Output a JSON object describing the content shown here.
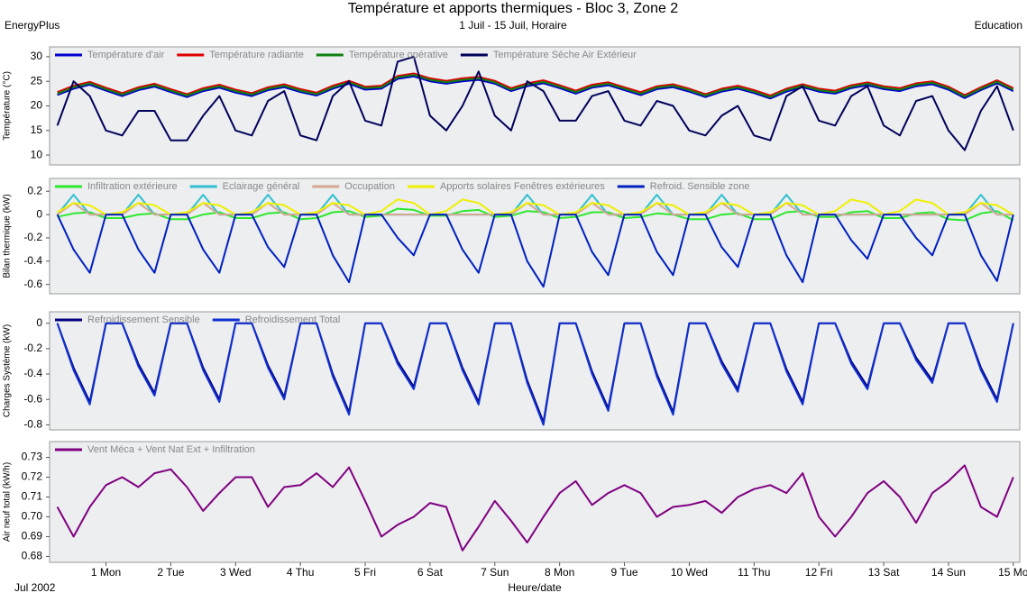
{
  "header": {
    "title": "Température et apports thermiques - Bloc 3, Zone 2",
    "subtitle": "1 Juil - 15 Juil, Horaire",
    "left_label": "EnergyPlus",
    "right_label": "Education"
  },
  "chart_data": [
    {
      "type": "line",
      "y_label": "Température (°C)",
      "xlim": [
        0.13,
        15.1
      ],
      "ylim": [
        8,
        32
      ],
      "yticks": [
        10,
        15,
        20,
        25,
        30
      ],
      "x": [
        0.25,
        0.5,
        0.75,
        1,
        1.25,
        1.5,
        1.75,
        2,
        2.25,
        2.5,
        2.75,
        3,
        3.25,
        3.5,
        3.75,
        4,
        4.25,
        4.5,
        4.75,
        5,
        5.25,
        5.5,
        5.75,
        6,
        6.25,
        6.5,
        6.75,
        7,
        7.25,
        7.5,
        7.75,
        8,
        8.25,
        8.5,
        8.75,
        9,
        9.25,
        9.5,
        9.75,
        10,
        10.25,
        10.5,
        10.75,
        11,
        11.25,
        11.5,
        11.75,
        12,
        12.25,
        12.5,
        12.75,
        13,
        13.25,
        13.5,
        13.75,
        14,
        14.25,
        14.5,
        14.75,
        15
      ],
      "series": [
        {
          "name": "Température d'air",
          "color": "#0000cd",
          "values": [
            22.2,
            23.5,
            24.3,
            23.1,
            22.0,
            23.2,
            23.9,
            22.8,
            21.8,
            23.0,
            23.7,
            22.7,
            22.0,
            23.2,
            23.8,
            22.8,
            22.1,
            23.5,
            24.5,
            23.3,
            23.5,
            25.5,
            26.0,
            25.0,
            24.5,
            25.0,
            25.3,
            24.5,
            23.0,
            24.0,
            24.6,
            23.6,
            22.5,
            23.7,
            24.2,
            23.2,
            22.2,
            23.4,
            23.8,
            22.9,
            21.8,
            22.9,
            23.5,
            22.6,
            21.5,
            22.9,
            23.8,
            22.9,
            22.5,
            23.6,
            24.2,
            23.4,
            23.0,
            24.0,
            24.4,
            23.3,
            21.6,
            23.2,
            24.6,
            23.0
          ]
        },
        {
          "name": "Température radiante",
          "color": "#e00000",
          "values": [
            22.8,
            24.1,
            24.9,
            23.7,
            22.6,
            23.8,
            24.5,
            23.4,
            22.4,
            23.6,
            24.3,
            23.3,
            22.6,
            23.8,
            24.4,
            23.4,
            22.7,
            24.1,
            25.1,
            23.9,
            24.1,
            26.1,
            26.6,
            25.6,
            25.1,
            25.6,
            25.9,
            25.1,
            23.6,
            24.6,
            25.2,
            24.2,
            23.1,
            24.3,
            24.8,
            23.8,
            22.8,
            24.0,
            24.4,
            23.5,
            22.4,
            23.5,
            24.1,
            23.2,
            22.1,
            23.5,
            24.4,
            23.5,
            23.1,
            24.2,
            24.8,
            24.0,
            23.6,
            24.6,
            25.0,
            23.9,
            22.2,
            23.8,
            25.2,
            23.6
          ]
        },
        {
          "name": "Température opérative",
          "color": "#108010",
          "values": [
            22.5,
            23.8,
            24.6,
            23.4,
            22.3,
            23.5,
            24.2,
            23.1,
            22.1,
            23.3,
            24.0,
            23.0,
            22.3,
            23.5,
            24.1,
            23.1,
            22.4,
            23.8,
            24.8,
            23.6,
            23.8,
            25.8,
            26.3,
            25.3,
            24.8,
            25.3,
            25.6,
            24.8,
            23.3,
            24.3,
            24.9,
            23.9,
            22.8,
            24.0,
            24.5,
            23.5,
            22.5,
            23.7,
            24.1,
            23.2,
            22.1,
            23.2,
            23.8,
            22.9,
            21.8,
            23.2,
            24.1,
            23.2,
            22.8,
            23.9,
            24.5,
            23.7,
            23.3,
            24.3,
            24.7,
            23.6,
            21.9,
            23.5,
            24.9,
            23.3
          ]
        },
        {
          "name": "Température Sèche Air Extérieur",
          "color": "#00005a",
          "values": [
            16,
            25,
            22,
            15,
            14,
            19,
            19,
            13,
            13,
            18,
            22,
            15,
            14,
            21,
            23,
            14,
            13,
            22,
            25,
            17,
            16,
            29,
            30,
            18,
            15,
            20,
            27,
            18,
            15,
            25,
            23,
            17,
            17,
            22,
            23,
            17,
            16,
            21,
            20,
            15,
            14,
            18,
            20,
            14,
            13,
            22,
            24,
            17,
            16,
            22,
            24,
            16,
            14,
            21,
            22,
            15,
            11,
            19,
            24,
            15
          ]
        }
      ]
    },
    {
      "type": "line",
      "y_label": "Bilan thermique (kW)",
      "xlim": [
        0.13,
        15.1
      ],
      "ylim": [
        -0.68,
        0.31
      ],
      "yticks": [
        -0.6,
        -0.4,
        -0.2,
        0,
        0.2
      ],
      "x": [
        0.25,
        0.5,
        0.75,
        1,
        1.25,
        1.5,
        1.75,
        2,
        2.25,
        2.5,
        2.75,
        3,
        3.25,
        3.5,
        3.75,
        4,
        4.25,
        4.5,
        4.75,
        5,
        5.25,
        5.5,
        5.75,
        6,
        6.25,
        6.5,
        6.75,
        7,
        7.25,
        7.5,
        7.75,
        8,
        8.25,
        8.5,
        8.75,
        9,
        9.25,
        9.5,
        9.75,
        10,
        10.25,
        10.5,
        10.75,
        11,
        11.25,
        11.5,
        11.75,
        12,
        12.25,
        12.5,
        12.75,
        13,
        13.25,
        13.5,
        13.75,
        14,
        14.25,
        14.5,
        14.75,
        15
      ],
      "series": [
        {
          "name": "Infiltration extérieure",
          "color": "#2ee82e",
          "values": [
            -0.02,
            0.01,
            0.02,
            -0.03,
            -0.03,
            0,
            0.01,
            -0.04,
            -0.04,
            0,
            0.02,
            -0.03,
            -0.03,
            0.01,
            0.02,
            -0.04,
            -0.03,
            0.02,
            0.03,
            -0.02,
            -0.01,
            0.05,
            0.04,
            -0.01,
            -0.01,
            0.03,
            0.04,
            -0.02,
            -0.01,
            0.03,
            0.02,
            -0.03,
            -0.02,
            0.02,
            0.02,
            -0.03,
            -0.02,
            0.01,
            0,
            -0.04,
            -0.04,
            0,
            0.01,
            -0.04,
            -0.04,
            0.02,
            0.03,
            -0.02,
            -0.02,
            0.02,
            0.03,
            -0.03,
            -0.03,
            0.01,
            0.02,
            -0.04,
            -0.05,
            0.01,
            0.03,
            -0.05
          ]
        },
        {
          "name": "Eclairage général",
          "color": "#30c0d0",
          "values": [
            0,
            0.17,
            0,
            0,
            0,
            0.17,
            0,
            0,
            0,
            0.17,
            0,
            0,
            0,
            0.17,
            0,
            0,
            0,
            0.17,
            0,
            0,
            0,
            0,
            0,
            0,
            0,
            0,
            0,
            0,
            0,
            0.17,
            0,
            0,
            0,
            0.17,
            0,
            0,
            0,
            0.17,
            0,
            0,
            0,
            0.17,
            0,
            0,
            0,
            0.17,
            0,
            0,
            0,
            0,
            0,
            0,
            0,
            0,
            0,
            0,
            0,
            0.17,
            0,
            0
          ]
        },
        {
          "name": "Occupation",
          "color": "#d4a890",
          "values": [
            0,
            0.1,
            0,
            0,
            0,
            0.1,
            0,
            0,
            0,
            0.1,
            0,
            0,
            0,
            0.1,
            0,
            0,
            0,
            0.1,
            0,
            0,
            0,
            0,
            0,
            0,
            0,
            0,
            0,
            0,
            0,
            0.1,
            0,
            0,
            0,
            0.1,
            0,
            0,
            0,
            0.1,
            0,
            0,
            0,
            0.1,
            0,
            0,
            0,
            0.1,
            0,
            0,
            0,
            0,
            0,
            0,
            0,
            0,
            0,
            0,
            0,
            0.1,
            0,
            0
          ]
        },
        {
          "name": "Apports solaires Fenêtres extérieures",
          "color": "#f0f000",
          "values": [
            0.02,
            0.1,
            0.08,
            0,
            0.02,
            0.1,
            0.08,
            0,
            0.02,
            0.1,
            0.08,
            0,
            0.02,
            0.1,
            0.08,
            0,
            0.02,
            0.1,
            0.08,
            0,
            0.03,
            0.13,
            0.1,
            0,
            0.03,
            0.13,
            0.1,
            0,
            0.02,
            0.1,
            0.08,
            0,
            0.02,
            0.1,
            0.08,
            0,
            0.02,
            0.1,
            0.08,
            0,
            0.02,
            0.1,
            0.08,
            0,
            0.02,
            0.1,
            0.08,
            0,
            0.03,
            0.13,
            0.1,
            0,
            0.03,
            0.13,
            0.1,
            0,
            0.02,
            0.1,
            0.08,
            0
          ]
        },
        {
          "name": "Refroid. Sensible zone",
          "color": "#0020c0",
          "values": [
            0,
            -0.3,
            -0.5,
            0,
            0,
            -0.3,
            -0.5,
            0,
            0,
            -0.3,
            -0.5,
            0,
            0,
            -0.28,
            -0.45,
            0,
            0,
            -0.35,
            -0.58,
            0,
            0,
            -0.2,
            -0.35,
            0,
            0,
            -0.3,
            -0.5,
            0,
            0,
            -0.4,
            -0.62,
            0,
            0,
            -0.32,
            -0.52,
            0,
            0,
            -0.32,
            -0.52,
            0,
            0,
            -0.28,
            -0.45,
            0,
            0,
            -0.35,
            -0.58,
            0,
            0,
            -0.22,
            -0.38,
            0,
            0,
            -0.2,
            -0.35,
            0,
            0,
            -0.35,
            -0.57,
            0
          ]
        }
      ]
    },
    {
      "type": "line",
      "y_label": "Charges Système (kW)",
      "xlim": [
        0.13,
        15.1
      ],
      "ylim": [
        -0.84,
        0.09
      ],
      "yticks": [
        -0.8,
        -0.6,
        -0.4,
        -0.2,
        0
      ],
      "x": [
        0.25,
        0.5,
        0.75,
        1,
        1.25,
        1.5,
        1.75,
        2,
        2.25,
        2.5,
        2.75,
        3,
        3.25,
        3.5,
        3.75,
        4,
        4.25,
        4.5,
        4.75,
        5,
        5.25,
        5.5,
        5.75,
        6,
        6.25,
        6.5,
        6.75,
        7,
        7.25,
        7.5,
        7.75,
        8,
        8.25,
        8.5,
        8.75,
        9,
        9.25,
        9.5,
        9.75,
        10,
        10.25,
        10.5,
        10.75,
        11,
        11.25,
        11.5,
        11.75,
        12,
        12.25,
        12.5,
        12.75,
        13,
        13.25,
        13.5,
        13.75,
        14,
        14.25,
        14.5,
        14.75,
        15
      ],
      "series": [
        {
          "name": "Refroidissement Sensible",
          "color": "#000080",
          "values": [
            0,
            -0.35,
            -0.62,
            0,
            0,
            -0.32,
            -0.55,
            0,
            0,
            -0.35,
            -0.6,
            0,
            0,
            -0.33,
            -0.58,
            0,
            0,
            -0.4,
            -0.7,
            0,
            0,
            -0.3,
            -0.5,
            0,
            0,
            -0.35,
            -0.62,
            0,
            0,
            -0.45,
            -0.78,
            0,
            0,
            -0.38,
            -0.67,
            0,
            0,
            -0.4,
            -0.7,
            0,
            0,
            -0.3,
            -0.52,
            0,
            0,
            -0.36,
            -0.62,
            0,
            0,
            -0.3,
            -0.5,
            0,
            0,
            -0.27,
            -0.45,
            0,
            0,
            -0.35,
            -0.6,
            0
          ]
        },
        {
          "name": "Refroidissement Total",
          "color": "#1030d0",
          "values": [
            0,
            -0.37,
            -0.64,
            0,
            0,
            -0.34,
            -0.57,
            0,
            0,
            -0.37,
            -0.62,
            0,
            0,
            -0.35,
            -0.6,
            0,
            0,
            -0.42,
            -0.72,
            0,
            0,
            -0.32,
            -0.52,
            0,
            0,
            -0.37,
            -0.64,
            0,
            0,
            -0.47,
            -0.8,
            0,
            0,
            -0.4,
            -0.69,
            0,
            0,
            -0.42,
            -0.72,
            0,
            0,
            -0.32,
            -0.54,
            0,
            0,
            -0.38,
            -0.64,
            0,
            0,
            -0.32,
            -0.52,
            0,
            0,
            -0.29,
            -0.47,
            0,
            0,
            -0.37,
            -0.62,
            0
          ]
        }
      ]
    },
    {
      "type": "line",
      "y_label": "Air neuf total (kW/h)",
      "x_label": "Heure/date",
      "date_label": "Jul  2002",
      "xlim": [
        0.13,
        15.1
      ],
      "ylim": [
        0.677,
        0.738
      ],
      "yticks": [
        0.68,
        0.69,
        {
          "value": 0.7,
          "label": "0.70"
        },
        0.71,
        0.72,
        0.73
      ],
      "xticks": [
        {
          "value": 1,
          "label": "1 Mon"
        },
        {
          "value": 2,
          "label": "2 Tue"
        },
        {
          "value": 3,
          "label": "3 Wed"
        },
        {
          "value": 4,
          "label": "4 Thu"
        },
        {
          "value": 5,
          "label": "5 Fri"
        },
        {
          "value": 6,
          "label": "6 Sat"
        },
        {
          "value": 7,
          "label": "7 Sun"
        },
        {
          "value": 8,
          "label": "8 Mon"
        },
        {
          "value": 9,
          "label": "9 Tue"
        },
        {
          "value": 10,
          "label": "10 Wed"
        },
        {
          "value": 11,
          "label": "11 Thu"
        },
        {
          "value": 12,
          "label": "12 Fri"
        },
        {
          "value": 13,
          "label": "13 Sat"
        },
        {
          "value": 14,
          "label": "14 Sun"
        },
        {
          "value": 15,
          "label": "15 Mo"
        }
      ],
      "x": [
        0.25,
        0.5,
        0.75,
        1,
        1.25,
        1.5,
        1.75,
        2,
        2.25,
        2.5,
        2.75,
        3,
        3.25,
        3.5,
        3.75,
        4,
        4.25,
        4.5,
        4.75,
        5,
        5.25,
        5.5,
        5.75,
        6,
        6.25,
        6.5,
        6.75,
        7,
        7.25,
        7.5,
        7.75,
        8,
        8.25,
        8.5,
        8.75,
        9,
        9.25,
        9.5,
        9.75,
        10,
        10.25,
        10.5,
        10.75,
        11,
        11.25,
        11.5,
        11.75,
        12,
        12.25,
        12.5,
        12.75,
        13,
        13.25,
        13.5,
        13.75,
        14,
        14.25,
        14.5,
        14.75,
        15
      ],
      "series": [
        {
          "name": "Vent Méca + Vent Nat Ext + Infiltration",
          "color": "#800080",
          "values": [
            0.705,
            0.69,
            0.705,
            0.716,
            0.72,
            0.715,
            0.722,
            0.724,
            0.715,
            0.703,
            0.712,
            0.72,
            0.72,
            0.705,
            0.715,
            0.716,
            0.722,
            0.715,
            0.725,
            0.708,
            0.69,
            0.696,
            0.7,
            0.707,
            0.705,
            0.683,
            0.695,
            0.708,
            0.698,
            0.687,
            0.7,
            0.712,
            0.718,
            0.706,
            0.712,
            0.716,
            0.712,
            0.7,
            0.705,
            0.706,
            0.708,
            0.702,
            0.71,
            0.714,
            0.716,
            0.712,
            0.722,
            0.7,
            0.69,
            0.7,
            0.712,
            0.718,
            0.71,
            0.697,
            0.712,
            0.718,
            0.726,
            0.705,
            0.7,
            0.72
          ]
        }
      ]
    }
  ]
}
